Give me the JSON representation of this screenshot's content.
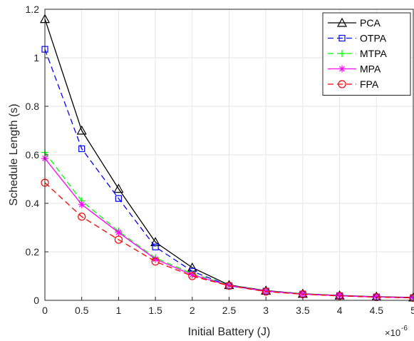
{
  "chart_data": {
    "type": "line",
    "xlabel": "Initial Battery (J)",
    "ylabel": "Schedule Length (s)",
    "x_multiplier": {
      "base": "×10",
      "exponent": "-6"
    },
    "x": [
      0,
      0.5,
      1,
      1.5,
      2,
      2.5,
      3,
      3.5,
      4,
      4.5,
      5
    ],
    "xlim": [
      0,
      5
    ],
    "ylim": [
      0,
      1.2
    ],
    "x_ticks": [
      "0",
      "0.5",
      "1",
      "1.5",
      "2",
      "2.5",
      "3",
      "3.5",
      "4",
      "4.5",
      "5"
    ],
    "y_ticks": [
      "0",
      "0.2",
      "0.4",
      "0.6",
      "0.8",
      "1",
      "1.2"
    ],
    "grid": true,
    "legend_position": "top-right",
    "series": [
      {
        "name": "PCA",
        "color": "#000000",
        "dash": "solid",
        "marker": "triangle",
        "values": [
          1.16,
          0.7,
          0.46,
          0.24,
          0.135,
          0.063,
          0.04,
          0.027,
          0.02,
          0.015,
          0.012
        ]
      },
      {
        "name": "OTPA",
        "color": "#0000ff",
        "dash": "dashed",
        "marker": "square",
        "values": [
          1.035,
          0.625,
          0.42,
          0.22,
          0.12,
          0.06,
          0.038,
          0.026,
          0.019,
          0.014,
          0.011
        ]
      },
      {
        "name": "MTPA",
        "color": "#00ff00",
        "dash": "dashed",
        "marker": "plus",
        "values": [
          0.61,
          0.41,
          0.285,
          0.175,
          0.11,
          0.062,
          0.039,
          0.027,
          0.019,
          0.014,
          0.011
        ]
      },
      {
        "name": "MPA",
        "color": "#ff00ff",
        "dash": "solid",
        "marker": "asterisk",
        "values": [
          0.585,
          0.395,
          0.28,
          0.17,
          0.105,
          0.061,
          0.038,
          0.026,
          0.019,
          0.014,
          0.011
        ]
      },
      {
        "name": "FPA",
        "color": "#ff0000",
        "dash": "dashed",
        "marker": "circle",
        "values": [
          0.485,
          0.345,
          0.25,
          0.16,
          0.1,
          0.06,
          0.036,
          0.025,
          0.018,
          0.013,
          0.01
        ]
      }
    ]
  }
}
